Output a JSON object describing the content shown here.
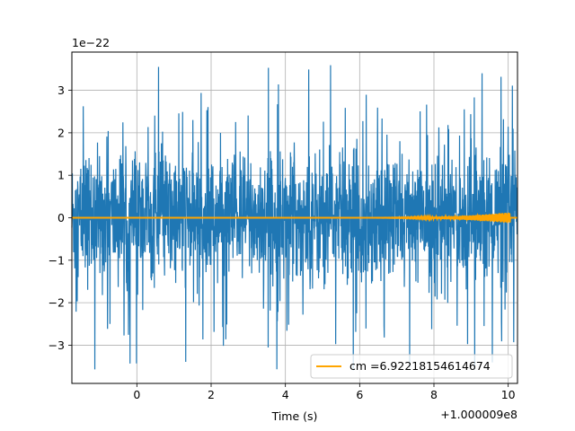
{
  "chart_data": {
    "type": "line",
    "title": "",
    "xlabel": "Time (s)",
    "ylabel": "",
    "x_offset_label": "+1.000009e8",
    "y_scale_label": "1e−22",
    "xlim": [
      -1.75,
      10.25
    ],
    "ylim": [
      -3.9,
      3.9
    ],
    "x_ticks": [
      0,
      2,
      4,
      6,
      8,
      10
    ],
    "x_tick_labels": [
      "0",
      "2",
      "4",
      "6",
      "8",
      "10"
    ],
    "y_ticks": [
      -3,
      -2,
      -1,
      0,
      1,
      2,
      3
    ],
    "y_tick_labels": [
      "−3",
      "−2",
      "−1",
      "0",
      "1",
      "2",
      "3"
    ],
    "grid": true,
    "legend_position": "lower-right",
    "series": [
      {
        "name": "",
        "color": "#1f77b4",
        "kind": "noise",
        "x_range": [
          -1.75,
          10.25
        ],
        "typical_amplitude": 2.0,
        "peak_amplitude": 3.6
      },
      {
        "name": "cm =6.92218154614674",
        "color": "#ffa500",
        "kind": "chirp",
        "x_range": [
          -1.75,
          10.25
        ],
        "chirp_start": 5.5,
        "chirp_peak_time": 9.95,
        "peak_amplitude": 0.12
      }
    ]
  }
}
